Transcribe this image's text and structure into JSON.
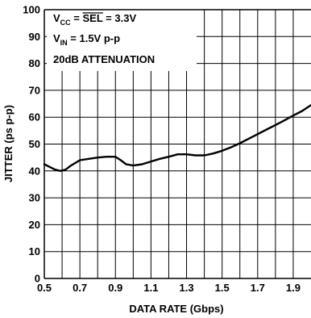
{
  "chart_data": {
    "type": "line",
    "title": "",
    "xlabel": "DATA RATE (Gbps)",
    "ylabel": "JITTER (ps p-p)",
    "xlim": [
      0.5,
      2.0
    ],
    "ylim": [
      0,
      100
    ],
    "x_ticks": [
      0.5,
      0.7,
      0.9,
      1.1,
      1.3,
      1.5,
      1.7,
      1.9
    ],
    "x_tick_labels": [
      "0.5",
      "0.7",
      "0.9",
      "1.1",
      "1.3",
      "1.5",
      "1.7",
      "1.9"
    ],
    "y_ticks": [
      0,
      10,
      20,
      30,
      40,
      50,
      60,
      70,
      80,
      90,
      100
    ],
    "y_tick_labels": [
      "0",
      "10",
      "20",
      "30",
      "40",
      "50",
      "60",
      "70",
      "80",
      "90",
      "100"
    ],
    "grid": true,
    "line_color": "#000000",
    "annotations": {
      "line1_prefix": "V",
      "line1_sub": "CC",
      "line1_mid": " = ",
      "line1_overline": "SEL",
      "line1_suffix": " = 3.3V",
      "line2_prefix": "V",
      "line2_sub": "IN",
      "line2_suffix": " = 1.5V p-p",
      "line3": "20dB ATTENUATION"
    },
    "series": [
      {
        "x": [
          0.5,
          0.53,
          0.56,
          0.59,
          0.62,
          0.65,
          0.7,
          0.75,
          0.8,
          0.85,
          0.9,
          0.93,
          0.96,
          1.0,
          1.05,
          1.1,
          1.15,
          1.2,
          1.25,
          1.3,
          1.35,
          1.4,
          1.45,
          1.5,
          1.55,
          1.6,
          1.65,
          1.7,
          1.75,
          1.8,
          1.85,
          1.9,
          1.95,
          2.0
        ],
        "values": [
          42.5,
          41.5,
          40.5,
          40,
          40.5,
          42,
          44,
          44.5,
          45,
          45.3,
          45.3,
          44,
          42.5,
          42,
          42.5,
          43.5,
          44.5,
          45.3,
          46.2,
          46.2,
          45.8,
          45.8,
          46.5,
          47.5,
          48.8,
          50.3,
          52,
          53.7,
          55.4,
          57.1,
          58.8,
          60.6,
          62.3,
          64.5
        ]
      }
    ]
  }
}
